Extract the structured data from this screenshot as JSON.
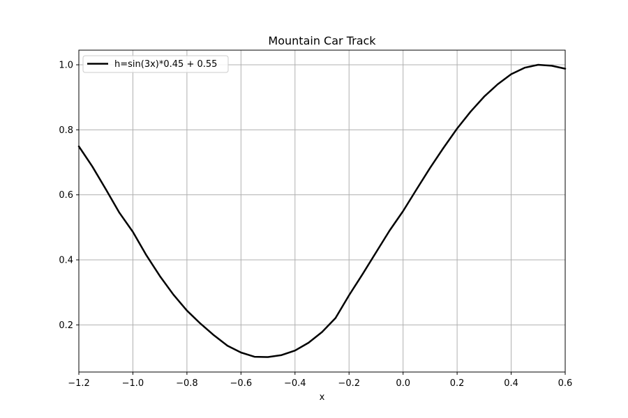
{
  "chart_data": {
    "type": "line",
    "title": "Mountain Car Track",
    "xlabel": "x",
    "ylabel": "",
    "xlim": [
      -1.2,
      0.6
    ],
    "ylim": [
      0.055,
      1.045
    ],
    "grid": true,
    "legend_position": "top-left",
    "x_ticks": [
      -1.2,
      -1.0,
      -0.8,
      -0.6,
      -0.4,
      -0.2,
      0.0,
      0.2,
      0.4,
      0.6
    ],
    "x_tick_labels": [
      "−1.2",
      "−1.0",
      "−0.8",
      "−0.6",
      "−0.4",
      "−0.2",
      "0.0",
      "0.2",
      "0.4",
      "0.6"
    ],
    "y_ticks": [
      0.2,
      0.4,
      0.6,
      0.8,
      1.0
    ],
    "y_tick_labels": [
      "0.2",
      "0.4",
      "0.6",
      "0.8",
      "1.0"
    ],
    "series": [
      {
        "name": "h=sin(3x)*0.45 + 0.55",
        "color": "#000000",
        "x": [
          -1.2,
          -1.15,
          -1.1,
          -1.05,
          -1.0,
          -0.95,
          -0.9,
          -0.85,
          -0.8,
          -0.75,
          -0.7,
          -0.65,
          -0.6,
          -0.55,
          -0.5,
          -0.45,
          -0.4,
          -0.35,
          -0.3,
          -0.25,
          -0.2,
          -0.15,
          -0.1,
          -0.05,
          0.0,
          0.05,
          0.1,
          0.15,
          0.2,
          0.25,
          0.3,
          0.35,
          0.4,
          0.45,
          0.5,
          0.55,
          0.6
        ],
        "y": [
          0.749,
          0.687,
          0.617,
          0.545,
          0.486,
          0.414,
          0.35,
          0.293,
          0.244,
          0.204,
          0.168,
          0.136,
          0.115,
          0.102,
          0.101,
          0.107,
          0.121,
          0.145,
          0.178,
          0.221,
          0.291,
          0.356,
          0.423,
          0.49,
          0.55,
          0.617,
          0.683,
          0.745,
          0.804,
          0.856,
          0.902,
          0.94,
          0.971,
          0.991,
          1.0,
          0.997,
          0.988
        ]
      }
    ]
  }
}
